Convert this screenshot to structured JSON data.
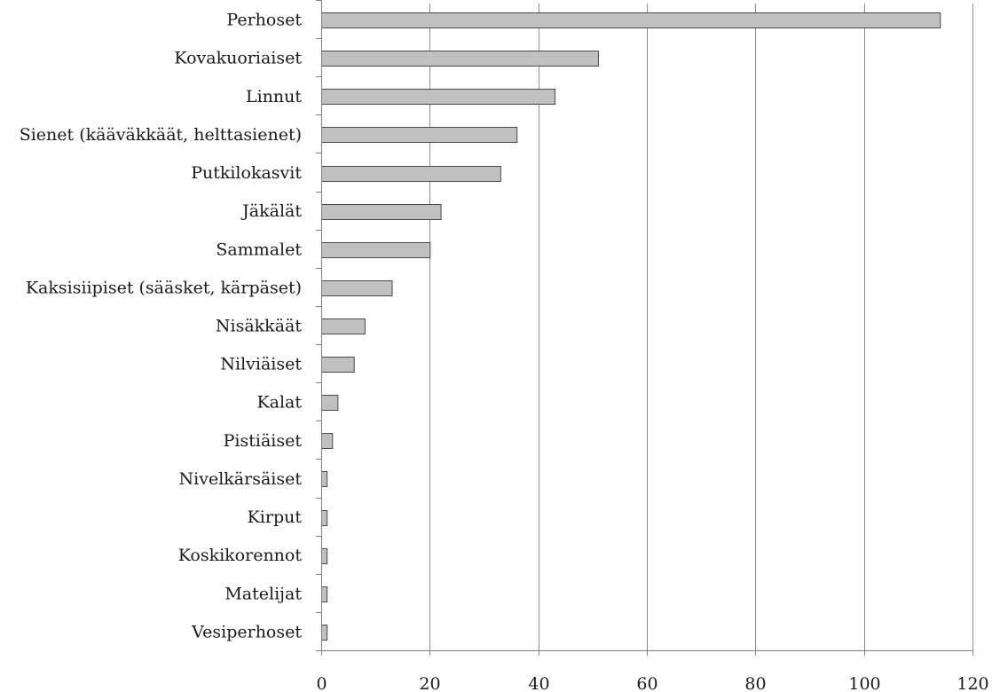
{
  "chart_data": {
    "type": "bar",
    "orientation": "horizontal",
    "categories": [
      "Perhoset",
      "Kovakuoriaiset",
      "Linnut",
      "Sienet (kääväkkäät, helttasienet)",
      "Putkilokasvit",
      "Jäkälät",
      "Sammalet",
      "Kaksisiipiset (sääsket, kärpäset)",
      "Nisäkkäät",
      "Nilviäiset",
      "Kalat",
      "Pistiäiset",
      "Nivelkärsäiset",
      "Kirput",
      "Koskikorennot",
      "Matelijat",
      "Vesiperhoset"
    ],
    "values": [
      114,
      51,
      43,
      36,
      33,
      22,
      20,
      13,
      8,
      6,
      3,
      2,
      1,
      1,
      1,
      1,
      1
    ],
    "xlim": [
      0,
      120
    ],
    "xticks": [
      "0",
      "20",
      "40",
      "60",
      "80",
      "100",
      "120"
    ],
    "grid": "vertical",
    "legend": "none",
    "title": "",
    "xlabel": "",
    "ylabel": "",
    "colors": {
      "bar_fill": "#c0c0c0",
      "bar_stroke": "#4a4a4a",
      "grid": "#8c8c8c",
      "axis": "#808080"
    }
  }
}
